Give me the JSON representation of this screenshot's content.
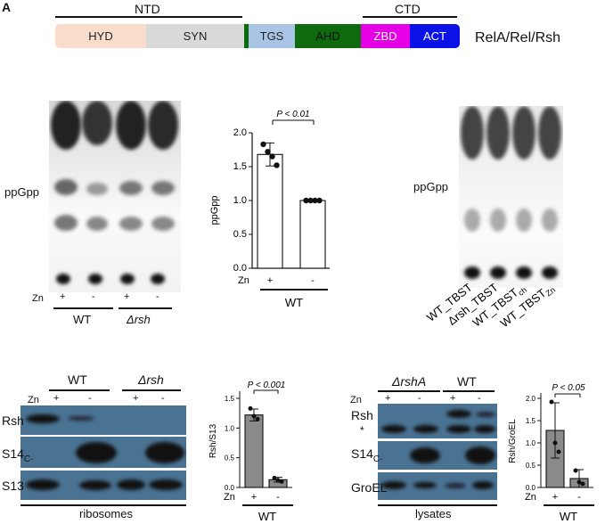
{
  "panel_label": "A",
  "domain_map": {
    "ntd": "NTD",
    "ctd": "CTD",
    "protein": "RelA/Rel/Rsh",
    "domains": [
      {
        "name": "HYD",
        "color": "#f9dccb",
        "text": "#222"
      },
      {
        "name": "SYN",
        "color": "#d9d9d9",
        "text": "#222"
      },
      {
        "name": "TGS",
        "color": "#a9c4e4",
        "text": "#222"
      },
      {
        "name": "AHD",
        "color": "#0d6b0d",
        "text": "#111"
      },
      {
        "name": "ZBD",
        "color": "#e600e6",
        "text": "#fff"
      },
      {
        "name": "ACT",
        "color": "#0a12e8",
        "text": "#fff"
      }
    ]
  },
  "tlc1": {
    "ppgpp": "ppGpp",
    "zn": "Zn",
    "lanes": [
      "+",
      "-",
      "+",
      "-"
    ],
    "strains": [
      "WT",
      "Δrsh"
    ]
  },
  "bar1": {
    "pvalue": "P < 0.01",
    "zn": "Zn",
    "strain": "WT",
    "chart_data": {
      "type": "bar",
      "categories": [
        "+",
        "-"
      ],
      "values": [
        1.68,
        1.0
      ],
      "errors": [
        0.17,
        0.0
      ],
      "points": [
        [
          1.83,
          1.72,
          1.65,
          1.52
        ],
        [
          1.0,
          1.0,
          1.0,
          1.0
        ]
      ],
      "ylabel": "ppGpp",
      "ylim": [
        0,
        2.0
      ],
      "yticks": [
        "0.0",
        "0.5",
        "1.0",
        "1.5",
        "2.0"
      ]
    }
  },
  "tlc2": {
    "ppgpp": "ppGpp",
    "lanes": [
      "WT_TBST",
      "Δrsh_TBST",
      "WT_TBST",
      "WT_TBST"
    ],
    "subs": [
      "",
      "",
      "ch",
      "Zn"
    ]
  },
  "blot1": {
    "strains": [
      "WT",
      "Δrsh"
    ],
    "zn": "Zn",
    "lanes": [
      "+",
      "-",
      "+",
      "-"
    ],
    "rows": [
      "Rsh",
      "S14",
      "S13"
    ],
    "s14_sub": "C-",
    "caption": "ribosomes"
  },
  "bar2": {
    "pvalue": "P < 0.001",
    "zn": "Zn",
    "strain": "WT",
    "chart_data": {
      "type": "bar",
      "categories": [
        "+",
        "-"
      ],
      "values": [
        1.22,
        0.13
      ],
      "errors": [
        0.1,
        0.04
      ],
      "points": [
        [
          1.33,
          1.2,
          1.15
        ],
        [
          0.16,
          0.12,
          0.1
        ]
      ],
      "ylabel": "Rsh/S13",
      "ylim": [
        0,
        1.5
      ],
      "yticks": [
        "0.0",
        "0.5",
        "1.0",
        "1.5"
      ]
    }
  },
  "blot2": {
    "strains": [
      "ΔrshA",
      "WT"
    ],
    "zn": "Zn",
    "lanes": [
      "+",
      "-",
      "+",
      "-"
    ],
    "rows": [
      "Rsh",
      "*",
      "S14",
      "GroEL"
    ],
    "s14_sub": "C-",
    "caption": "lysates"
  },
  "bar3": {
    "pvalue": "P < 0.05",
    "zn": "Zn",
    "strain": "WT",
    "chart_data": {
      "type": "bar",
      "categories": [
        "+",
        "-"
      ],
      "values": [
        1.28,
        0.2
      ],
      "errors": [
        0.62,
        0.2
      ],
      "points": [
        [
          1.92,
          1.0,
          0.8
        ],
        [
          0.38,
          0.12,
          0.08
        ]
      ],
      "ylabel": "Rsh/GroEL",
      "ylim": [
        0,
        2.0
      ],
      "yticks": [
        "0.0",
        "0.5",
        "1.0",
        "1.5",
        "2.0"
      ]
    }
  }
}
